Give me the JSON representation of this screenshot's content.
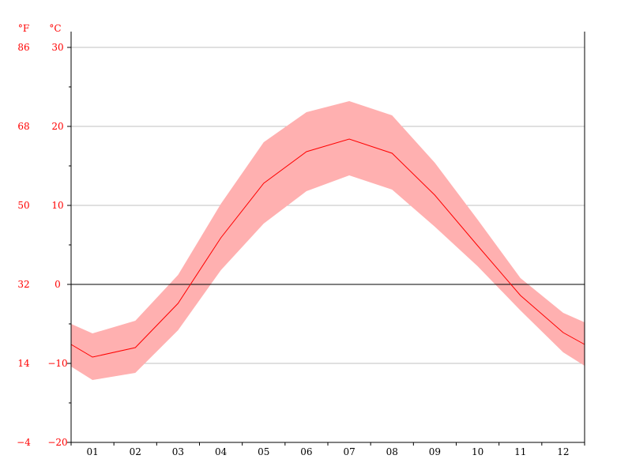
{
  "chart_data": {
    "type": "area",
    "units": {
      "fahrenheit": "°F",
      "celsius": "°C"
    },
    "categories": [
      "01",
      "02",
      "03",
      "04",
      "05",
      "06",
      "07",
      "08",
      "09",
      "10",
      "11",
      "12"
    ],
    "series": [
      {
        "kind": "mean",
        "values": [
          -9.2,
          -8.0,
          -2.4,
          5.9,
          12.8,
          16.8,
          18.4,
          16.6,
          11.3,
          4.9,
          -1.4,
          -6.1
        ]
      },
      {
        "kind": "max",
        "values": [
          -6.2,
          -4.6,
          1.2,
          10.2,
          18.0,
          21.8,
          23.2,
          21.4,
          15.4,
          8.2,
          0.8,
          -3.6
        ]
      },
      {
        "kind": "min",
        "values": [
          -12.1,
          -11.2,
          -5.8,
          1.8,
          7.7,
          11.8,
          13.8,
          12.0,
          7.3,
          2.3,
          -3.3,
          -8.6
        ]
      }
    ],
    "edge_values": {
      "mean": [
        -7.6,
        -7.6
      ],
      "max": [
        -5.0,
        -4.8
      ],
      "min": [
        -10.4,
        -10.3
      ]
    },
    "y_celsius_ticks": [
      "30",
      "20",
      "10",
      "0",
      "−10",
      "−20"
    ],
    "y_fahrenheit_ticks": [
      "86",
      "68",
      "50",
      "32",
      "14",
      "−4"
    ],
    "ylim": [
      -20,
      32
    ],
    "grid": true,
    "colors": {
      "line": "#ff0000",
      "band": "#ffb0b0",
      "grid": "#c0c0c0",
      "axis": "#000000",
      "labels": "#ff0000"
    }
  }
}
